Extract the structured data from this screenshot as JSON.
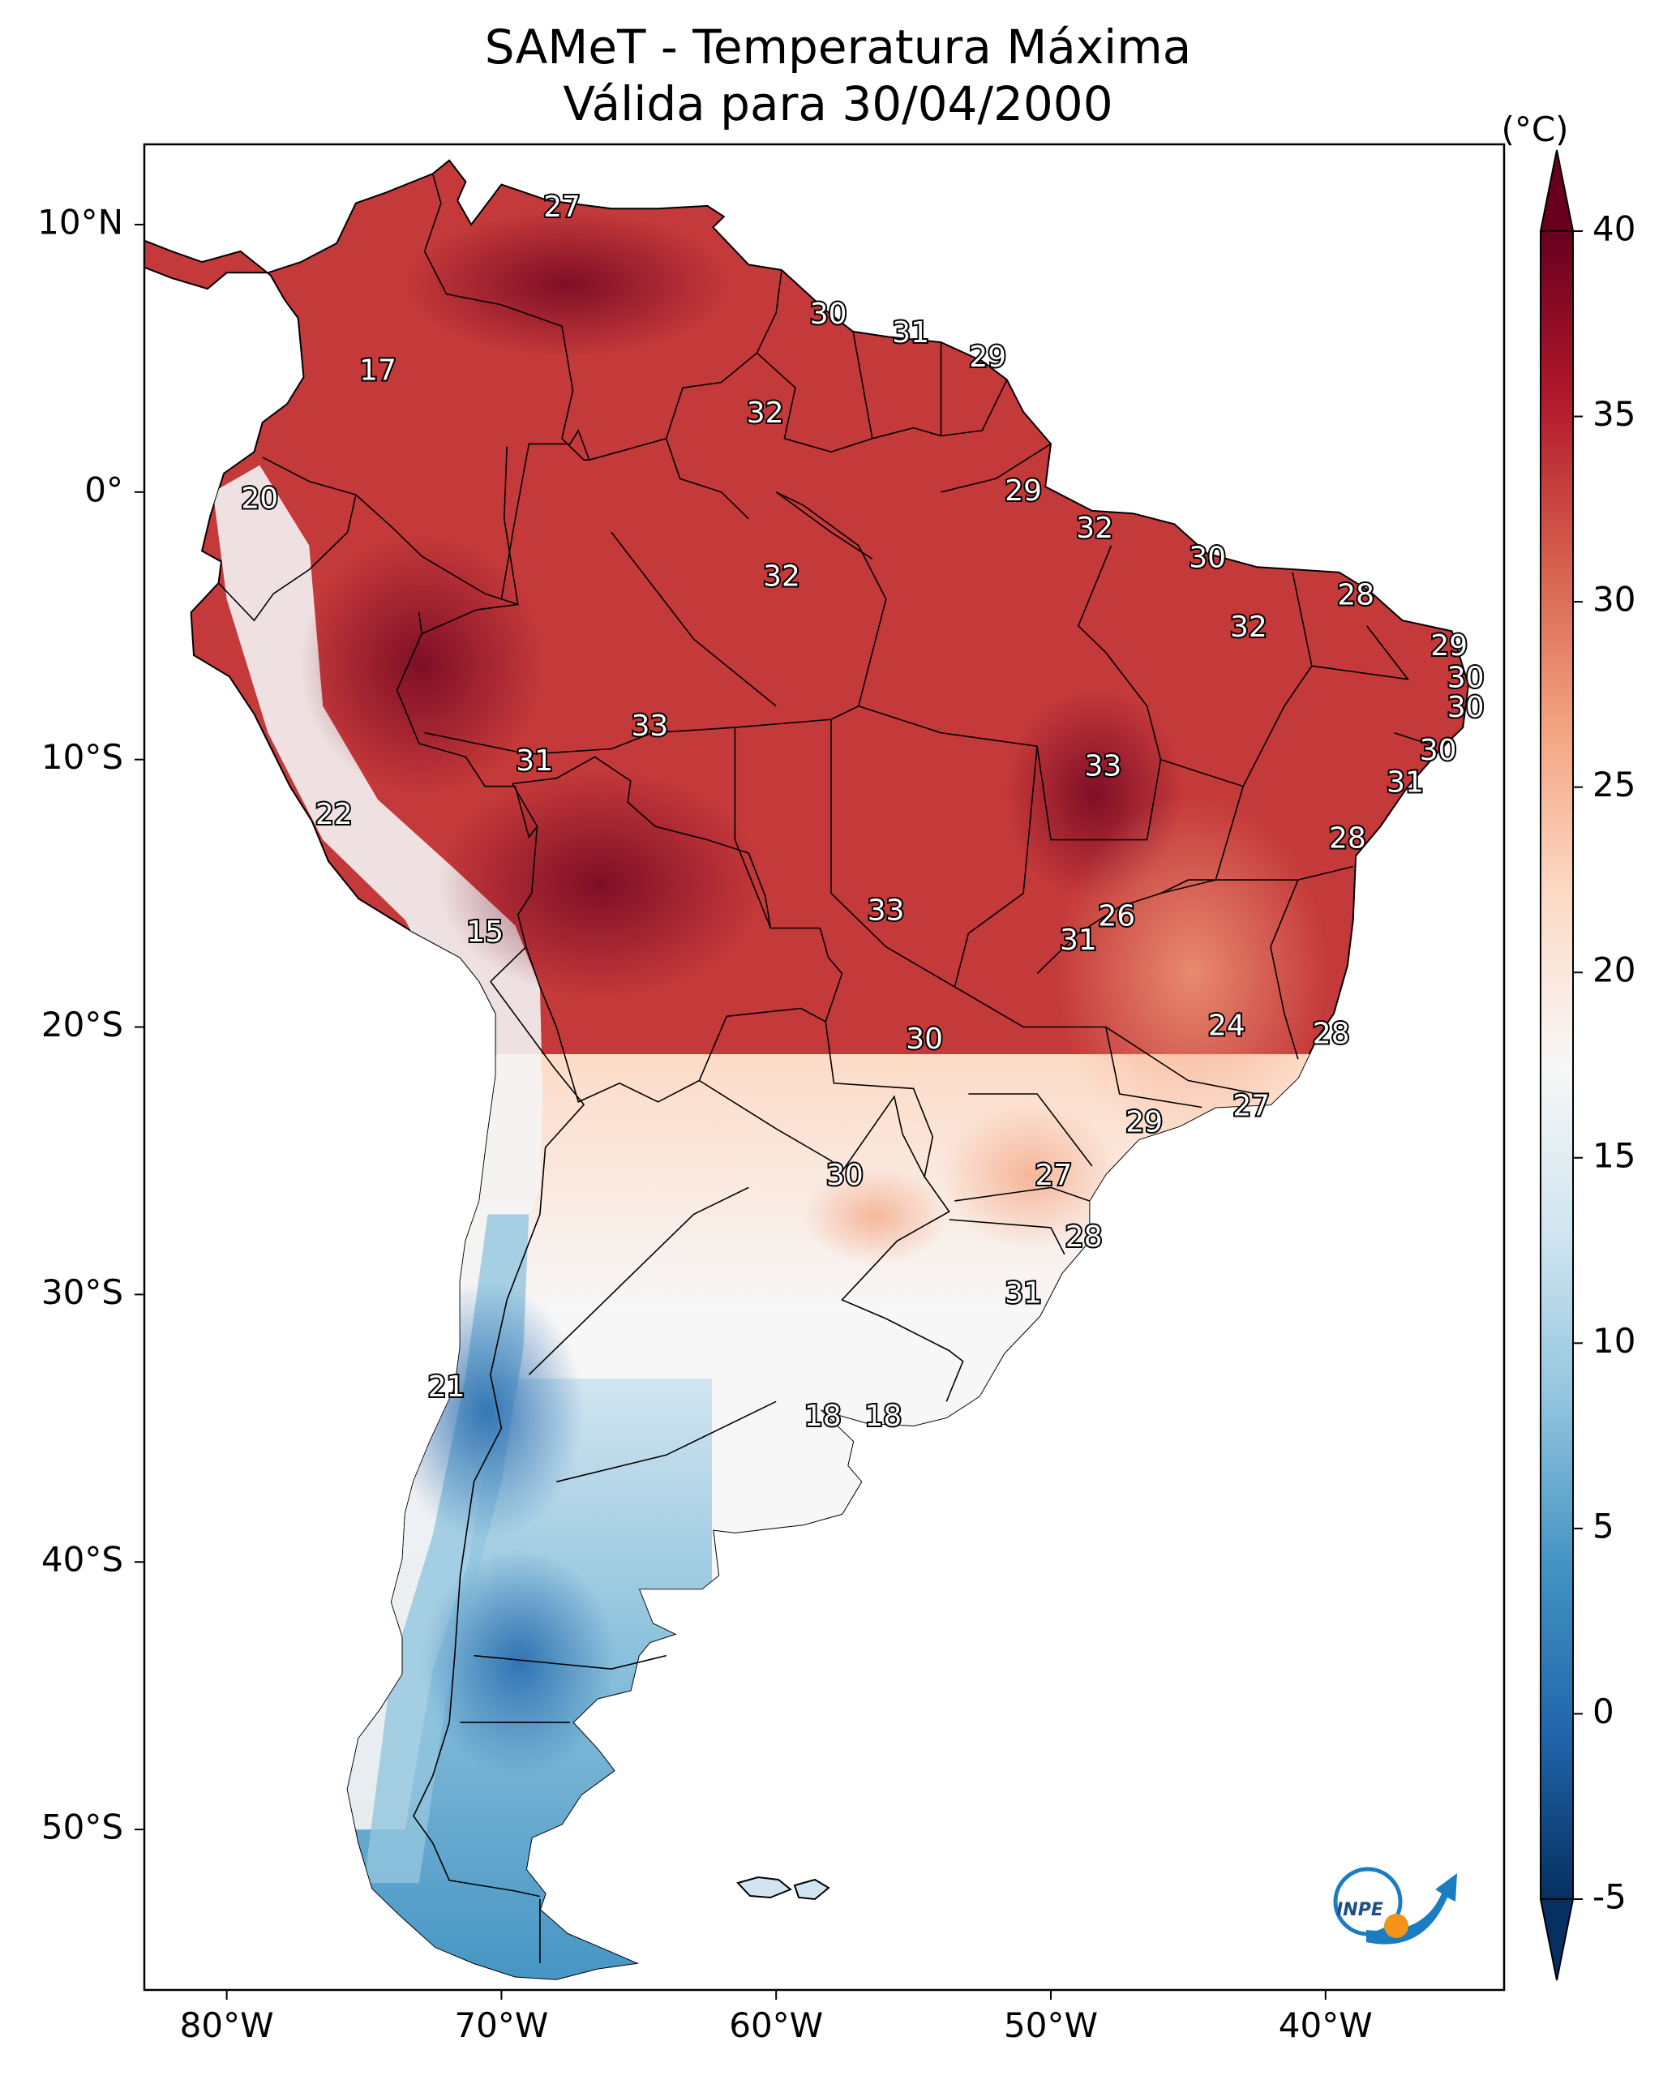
{
  "title": {
    "line1": "SAMeT - Temperatura Máxima",
    "line2": "Válida para 30/04/2000"
  },
  "map": {
    "lon_range": [
      -83,
      -33.5
    ],
    "lat_range": [
      -56,
      13
    ],
    "lon_ticks": [
      {
        "value": -80,
        "label": "80°W"
      },
      {
        "value": -70,
        "label": "70°W"
      },
      {
        "value": -60,
        "label": "60°W"
      },
      {
        "value": -50,
        "label": "50°W"
      },
      {
        "value": -40,
        "label": "40°W"
      }
    ],
    "lat_ticks": [
      {
        "value": 10,
        "label": "10°N"
      },
      {
        "value": 0,
        "label": "0°"
      },
      {
        "value": -10,
        "label": "10°S"
      },
      {
        "value": -20,
        "label": "20°S"
      },
      {
        "value": -30,
        "label": "30°S"
      },
      {
        "value": -40,
        "label": "40°S"
      },
      {
        "value": -50,
        "label": "50°S"
      }
    ],
    "labels": [
      {
        "lon": -67.8,
        "lat": 10.6,
        "text": "27"
      },
      {
        "lon": -74.5,
        "lat": 4.5,
        "text": "17"
      },
      {
        "lon": -58.1,
        "lat": 6.6,
        "text": "30"
      },
      {
        "lon": -55.1,
        "lat": 5.9,
        "text": "31"
      },
      {
        "lon": -52.3,
        "lat": 5.0,
        "text": "29"
      },
      {
        "lon": -60.4,
        "lat": 2.9,
        "text": "32"
      },
      {
        "lon": -78.8,
        "lat": -0.3,
        "text": "20"
      },
      {
        "lon": -51.0,
        "lat": -0.0,
        "text": "29"
      },
      {
        "lon": -48.4,
        "lat": -1.4,
        "text": "32"
      },
      {
        "lon": -44.3,
        "lat": -2.5,
        "text": "30"
      },
      {
        "lon": -59.8,
        "lat": -3.2,
        "text": "32"
      },
      {
        "lon": -38.9,
        "lat": -3.9,
        "text": "28"
      },
      {
        "lon": -42.8,
        "lat": -5.1,
        "text": "32"
      },
      {
        "lon": -35.5,
        "lat": -5.8,
        "text": "29"
      },
      {
        "lon": -34.9,
        "lat": -7.0,
        "text": "30"
      },
      {
        "lon": -34.9,
        "lat": -8.1,
        "text": "30"
      },
      {
        "lon": -64.6,
        "lat": -8.8,
        "text": "33"
      },
      {
        "lon": -68.8,
        "lat": -10.1,
        "text": "31"
      },
      {
        "lon": -48.1,
        "lat": -10.3,
        "text": "33"
      },
      {
        "lon": -35.9,
        "lat": -9.7,
        "text": "30"
      },
      {
        "lon": -37.1,
        "lat": -10.9,
        "text": "31"
      },
      {
        "lon": -76.1,
        "lat": -12.1,
        "text": "22"
      },
      {
        "lon": -39.2,
        "lat": -13.0,
        "text": "28"
      },
      {
        "lon": -56.0,
        "lat": -15.7,
        "text": "33"
      },
      {
        "lon": -47.6,
        "lat": -15.9,
        "text": "26"
      },
      {
        "lon": -49.0,
        "lat": -16.8,
        "text": "31"
      },
      {
        "lon": -70.6,
        "lat": -16.5,
        "text": "15"
      },
      {
        "lon": -43.6,
        "lat": -20.0,
        "text": "24"
      },
      {
        "lon": -54.6,
        "lat": -20.5,
        "text": "30"
      },
      {
        "lon": -39.8,
        "lat": -20.3,
        "text": "28"
      },
      {
        "lon": -42.7,
        "lat": -23.0,
        "text": "27"
      },
      {
        "lon": -46.6,
        "lat": -23.6,
        "text": "29"
      },
      {
        "lon": -57.5,
        "lat": -25.6,
        "text": "30"
      },
      {
        "lon": -49.9,
        "lat": -25.6,
        "text": "27"
      },
      {
        "lon": -48.8,
        "lat": -27.9,
        "text": "28"
      },
      {
        "lon": -51.0,
        "lat": -30.0,
        "text": "31"
      },
      {
        "lon": -72.0,
        "lat": -33.5,
        "text": "21"
      },
      {
        "lon": -58.3,
        "lat": -34.6,
        "text": "18"
      },
      {
        "lon": -56.1,
        "lat": -34.6,
        "text": "18"
      }
    ],
    "logo_text": "INPE"
  },
  "colorbar": {
    "unit": "(°C)",
    "min": -5,
    "max": 40,
    "ticks": [
      {
        "value": 40,
        "label": "40"
      },
      {
        "value": 35,
        "label": "35"
      },
      {
        "value": 30,
        "label": "30"
      },
      {
        "value": 25,
        "label": "25"
      },
      {
        "value": 20,
        "label": "20"
      },
      {
        "value": 15,
        "label": "15"
      },
      {
        "value": 10,
        "label": "10"
      },
      {
        "value": 5,
        "label": "5"
      },
      {
        "value": 0,
        "label": "0"
      },
      {
        "value": -5,
        "label": "-5"
      }
    ],
    "colors": [
      "#053061",
      "#2166ac",
      "#4393c3",
      "#92c5de",
      "#d1e5f0",
      "#f7f7f7",
      "#fddbc7",
      "#f4a582",
      "#d6604d",
      "#b2182b",
      "#67001f"
    ]
  }
}
